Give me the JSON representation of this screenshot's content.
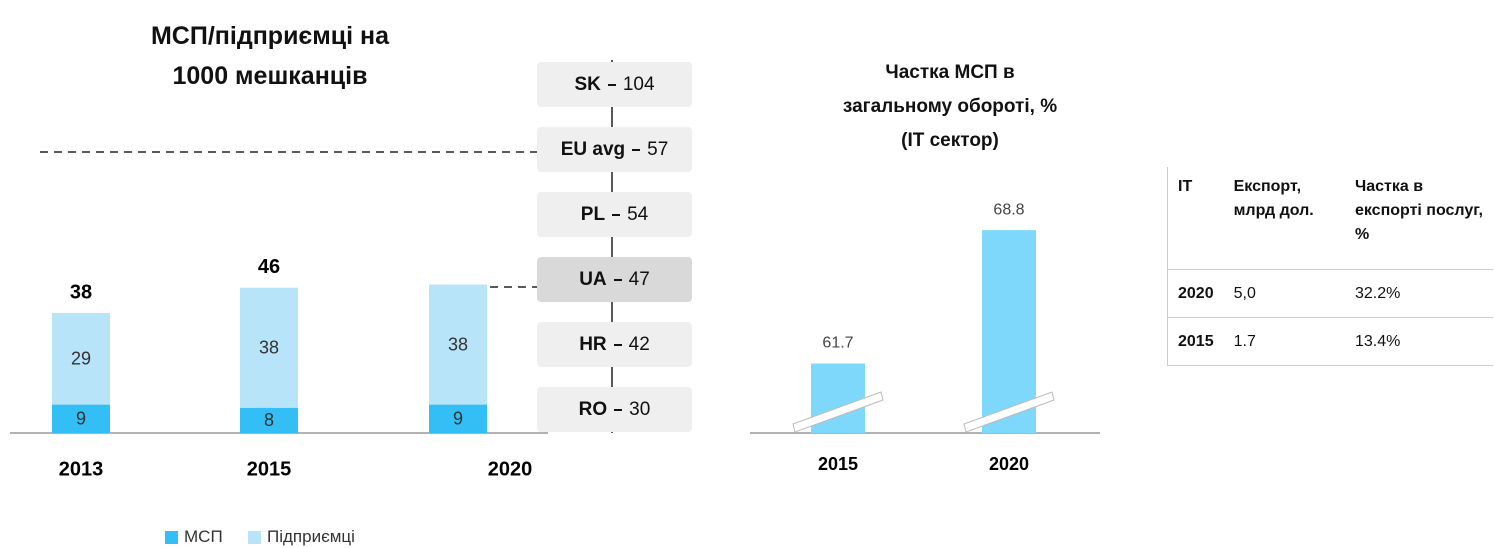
{
  "chart_data": [
    {
      "type": "bar",
      "stacked": true,
      "title": [
        "МСП/підприємці на",
        "1000 мешканців"
      ],
      "categories": [
        "2013",
        "2015",
        "2020"
      ],
      "series": [
        {
          "name": "МСП",
          "color": "#33bff5",
          "values": [
            9,
            8,
            9
          ]
        },
        {
          "name": "Підприємці",
          "color": "#b8e4fa",
          "values": [
            29,
            38,
            38
          ]
        }
      ],
      "totals": [
        38,
        46,
        null
      ],
      "ylim": [
        0,
        60
      ],
      "legend": "bottom-left"
    },
    {
      "type": "bar",
      "title": [
        "Частка МСП в",
        "загальному обороті, %",
        "(IT сектор)"
      ],
      "categories": [
        "2015",
        "2020"
      ],
      "values": [
        61.7,
        68.8
      ],
      "color": "#7dd8fc",
      "ylim": [
        58,
        72
      ]
    }
  ],
  "benchmarks": [
    {
      "name": "SK",
      "value": 104,
      "color": "#efefef"
    },
    {
      "name": "EU avg",
      "value": 57,
      "color": "#efefef"
    },
    {
      "name": "PL",
      "value": 54,
      "color": "#efefef"
    },
    {
      "name": "UA",
      "value": 47,
      "color": "#d9d9d9"
    },
    {
      "name": "HR",
      "value": 42,
      "color": "#efefef"
    },
    {
      "name": "RO",
      "value": 30,
      "color": "#efefef"
    }
  ],
  "table": {
    "header": [
      "IT",
      "Експорт, млрд дол.",
      "Частка в експорті послуг, %"
    ],
    "rows": [
      [
        "2020",
        "5,0",
        "32.2%"
      ],
      [
        "2015",
        "1.7",
        "13.4%"
      ]
    ]
  }
}
